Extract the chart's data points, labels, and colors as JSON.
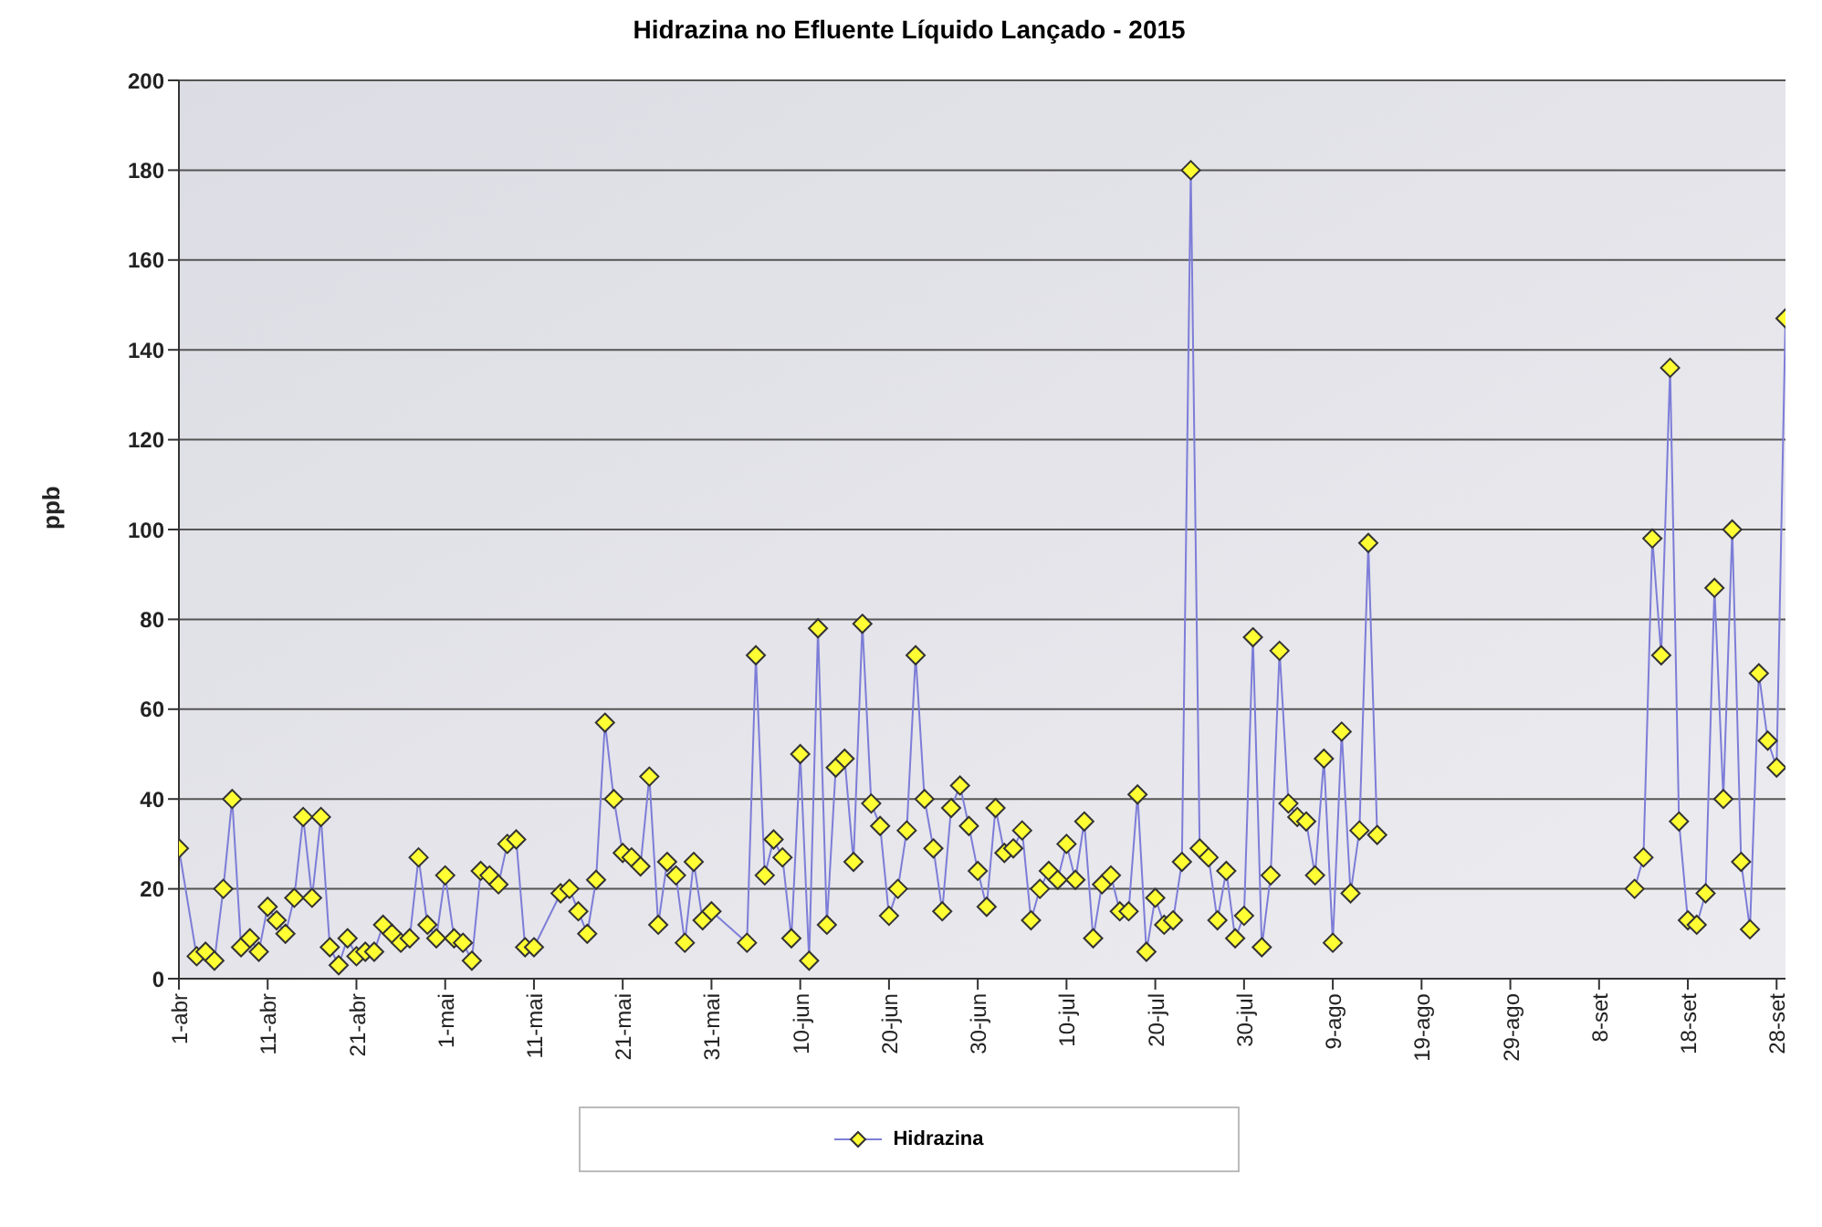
{
  "chart_data": {
    "type": "line",
    "title": "Hidrazina no Efluente Líquido Lançado - 2015",
    "ylabel": "ppb",
    "x": [
      "2015-04-01",
      "2015-04-03",
      "2015-04-04",
      "2015-04-05",
      "2015-04-06",
      "2015-04-07",
      "2015-04-08",
      "2015-04-09",
      "2015-04-10",
      "2015-04-11",
      "2015-04-12",
      "2015-04-13",
      "2015-04-14",
      "2015-04-15",
      "2015-04-16",
      "2015-04-17",
      "2015-04-18",
      "2015-04-19",
      "2015-04-20",
      "2015-04-21",
      "2015-04-22",
      "2015-04-23",
      "2015-04-24",
      "2015-04-25",
      "2015-04-26",
      "2015-04-27",
      "2015-04-28",
      "2015-04-29",
      "2015-04-30",
      "2015-05-01",
      "2015-05-02",
      "2015-05-03",
      "2015-05-04",
      "2015-05-05",
      "2015-05-06",
      "2015-05-07",
      "2015-05-08",
      "2015-05-09",
      "2015-05-10",
      "2015-05-11",
      "2015-05-14",
      "2015-05-15",
      "2015-05-16",
      "2015-05-17",
      "2015-05-18",
      "2015-05-19",
      "2015-05-20",
      "2015-05-21",
      "2015-05-22",
      "2015-05-23",
      "2015-05-24",
      "2015-05-25",
      "2015-05-26",
      "2015-05-27",
      "2015-05-28",
      "2015-05-29",
      "2015-05-30",
      "2015-05-31",
      "2015-06-04",
      "2015-06-05",
      "2015-06-06",
      "2015-06-07",
      "2015-06-08",
      "2015-06-09",
      "2015-06-10",
      "2015-06-11",
      "2015-06-12",
      "2015-06-13",
      "2015-06-14",
      "2015-06-15",
      "2015-06-16",
      "2015-06-17",
      "2015-06-18",
      "2015-06-19",
      "2015-06-20",
      "2015-06-21",
      "2015-06-22",
      "2015-06-23",
      "2015-06-24",
      "2015-06-25",
      "2015-06-26",
      "2015-06-27",
      "2015-06-28",
      "2015-06-29",
      "2015-06-30",
      "2015-07-01",
      "2015-07-02",
      "2015-07-03",
      "2015-07-04",
      "2015-07-05",
      "2015-07-06",
      "2015-07-07",
      "2015-07-08",
      "2015-07-09",
      "2015-07-10",
      "2015-07-11",
      "2015-07-12",
      "2015-07-13",
      "2015-07-14",
      "2015-07-15",
      "2015-07-16",
      "2015-07-17",
      "2015-07-18",
      "2015-07-19",
      "2015-07-20",
      "2015-07-21",
      "2015-07-22",
      "2015-07-23",
      "2015-07-24",
      "2015-07-25",
      "2015-07-26",
      "2015-07-27",
      "2015-07-28",
      "2015-07-29",
      "2015-07-30",
      "2015-07-31",
      "2015-08-01",
      "2015-08-02",
      "2015-08-03",
      "2015-08-04",
      "2015-08-05",
      "2015-08-06",
      "2015-08-07",
      "2015-08-08",
      "2015-08-09",
      "2015-08-10",
      "2015-08-11",
      "2015-08-12",
      "2015-08-13",
      "2015-08-14",
      "2015-08-15",
      "2015-09-12",
      "2015-09-13",
      "2015-09-14",
      "2015-09-15",
      "2015-09-16",
      "2015-09-17",
      "2015-09-18",
      "2015-09-19",
      "2015-09-20",
      "2015-09-21",
      "2015-09-22",
      "2015-09-23",
      "2015-09-24",
      "2015-09-25",
      "2015-09-26",
      "2015-09-27",
      "2015-09-28",
      "2015-09-29"
    ],
    "series": [
      {
        "name": "Hidrazina",
        "color": "#ffff33",
        "values": [
          29,
          5,
          6,
          4,
          20,
          40,
          7,
          9,
          6,
          16,
          13,
          10,
          18,
          36,
          18,
          36,
          7,
          3,
          9,
          5,
          6,
          6,
          12,
          10,
          8,
          9,
          27,
          12,
          9,
          23,
          9,
          8,
          4,
          24,
          23,
          21,
          30,
          31,
          7,
          7,
          19,
          20,
          15,
          10,
          22,
          57,
          40,
          28,
          27,
          25,
          45,
          12,
          26,
          23,
          8,
          26,
          13,
          15,
          8,
          72,
          23,
          31,
          27,
          9,
          50,
          4,
          78,
          12,
          47,
          49,
          26,
          79,
          39,
          34,
          14,
          20,
          33,
          72,
          40,
          29,
          15,
          38,
          43,
          34,
          24,
          16,
          38,
          28,
          29,
          33,
          13,
          20,
          24,
          22,
          30,
          22,
          35,
          9,
          21,
          23,
          15,
          15,
          41,
          6,
          18,
          12,
          13,
          26,
          180,
          29,
          27,
          13,
          24,
          9,
          14,
          76,
          7,
          23,
          73,
          39,
          36,
          35,
          23,
          49,
          8,
          55,
          19,
          33,
          97,
          32,
          null,
          20,
          27,
          98,
          72,
          136,
          35,
          13,
          12,
          19,
          87,
          40,
          100,
          26,
          11,
          68,
          53,
          47,
          147
        ]
      }
    ],
    "xlim": [
      "2015-04-01",
      "2015-09-29"
    ],
    "xticks": [
      {
        "value": "2015-04-01",
        "label": "1-abr"
      },
      {
        "value": "2015-04-11",
        "label": "11-abr"
      },
      {
        "value": "2015-04-21",
        "label": "21-abr"
      },
      {
        "value": "2015-05-01",
        "label": "1-mai"
      },
      {
        "value": "2015-05-11",
        "label": "11-mai"
      },
      {
        "value": "2015-05-21",
        "label": "21-mai"
      },
      {
        "value": "2015-05-31",
        "label": "31-mai"
      },
      {
        "value": "2015-06-10",
        "label": "10-jun"
      },
      {
        "value": "2015-06-20",
        "label": "20-jun"
      },
      {
        "value": "2015-06-30",
        "label": "30-jun"
      },
      {
        "value": "2015-07-10",
        "label": "10-jul"
      },
      {
        "value": "2015-07-20",
        "label": "20-jul"
      },
      {
        "value": "2015-07-30",
        "label": "30-jul"
      },
      {
        "value": "2015-08-09",
        "label": "9-ago"
      },
      {
        "value": "2015-08-19",
        "label": "19-ago"
      },
      {
        "value": "2015-08-29",
        "label": "29-ago"
      },
      {
        "value": "2015-09-08",
        "label": "8-set"
      },
      {
        "value": "2015-09-18",
        "label": "18-set"
      },
      {
        "value": "2015-09-28",
        "label": "28-set"
      }
    ],
    "ylim": [
      0,
      200
    ],
    "yticks": [
      0,
      20,
      40,
      60,
      80,
      100,
      120,
      140,
      160,
      180,
      200
    ],
    "grid": "y",
    "legend": "bottom",
    "marker": "diamond",
    "line_style": "solid"
  }
}
